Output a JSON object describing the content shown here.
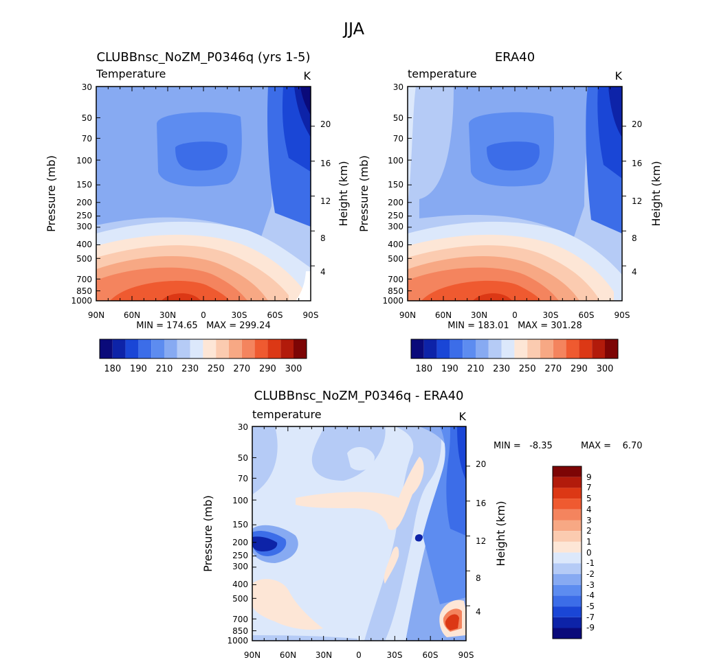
{
  "figure_title": "JJA",
  "chart_data": [
    {
      "type": "heatmap",
      "title": "CLUBBnsc_NoZM_P0346q (yrs 1-5)",
      "variable_label": "Temperature",
      "units": "K",
      "ylabel": "Pressure (mb)",
      "y2label": "Height (km)",
      "x_ticks": [
        "90N",
        "60N",
        "30N",
        "0",
        "30S",
        "60S",
        "90S"
      ],
      "y_ticks": [
        "30",
        "50",
        "70",
        "100",
        "150",
        "200",
        "250",
        "300",
        "400",
        "500",
        "700",
        "850",
        "1000"
      ],
      "y2_ticks": [
        "20",
        "16",
        "12",
        "8",
        "4"
      ],
      "stats": "MIN = 174.65   MAX = 299.24",
      "colorbar_labels": [
        "180",
        "190",
        "210",
        "230",
        "250",
        "270",
        "290",
        "300"
      ],
      "colorbar_colors": [
        "#0a0a7a",
        "#0d23a8",
        "#1a46d6",
        "#3c6de8",
        "#5d8cf0",
        "#87aaf2",
        "#b5cbf6",
        "#dce8fb",
        "#fde6d6",
        "#fbcbb0",
        "#f7a884",
        "#f4845e",
        "#ef5a30",
        "#dc3815",
        "#b21b0b",
        "#7d0505"
      ],
      "min": 174.65,
      "max": 299.24,
      "log_pressure_axis": true
    },
    {
      "type": "heatmap",
      "title": "ERA40",
      "variable_label": "temperature",
      "units": "K",
      "ylabel": "Pressure (mb)",
      "y2label": "Height (km)",
      "x_ticks": [
        "90N",
        "60N",
        "30N",
        "0",
        "30S",
        "60S",
        "90S"
      ],
      "y_ticks": [
        "30",
        "50",
        "70",
        "100",
        "150",
        "200",
        "250",
        "300",
        "400",
        "500",
        "700",
        "850",
        "1000"
      ],
      "y2_ticks": [
        "20",
        "16",
        "12",
        "8",
        "4"
      ],
      "stats": "MIN = 183.01   MAX = 301.28",
      "colorbar_labels": [
        "180",
        "190",
        "210",
        "230",
        "250",
        "270",
        "290",
        "300"
      ],
      "colorbar_colors": [
        "#0a0a7a",
        "#0d23a8",
        "#1a46d6",
        "#3c6de8",
        "#5d8cf0",
        "#87aaf2",
        "#b5cbf6",
        "#dce8fb",
        "#fde6d6",
        "#fbcbb0",
        "#f7a884",
        "#f4845e",
        "#ef5a30",
        "#dc3815",
        "#b21b0b",
        "#7d0505"
      ],
      "min": 183.01,
      "max": 301.28,
      "log_pressure_axis": true
    },
    {
      "type": "heatmap",
      "title": "CLUBBnsc_NoZM_P0346q - ERA40",
      "variable_label": "temperature",
      "units": "K",
      "ylabel": "Pressure (mb)",
      "y2label": "Height (km)",
      "x_ticks": [
        "90N",
        "60N",
        "30N",
        "0",
        "30S",
        "60S",
        "90S"
      ],
      "y_ticks": [
        "30",
        "50",
        "70",
        "100",
        "150",
        "200",
        "250",
        "300",
        "400",
        "500",
        "700",
        "850",
        "1000"
      ],
      "y2_ticks": [
        "20",
        "16",
        "12",
        "8",
        "4"
      ],
      "stats_min": "MIN =   -8.35",
      "stats_max": "MAX =    6.70",
      "min": -8.35,
      "max": 6.7,
      "colorbar_labels": [
        "9",
        "7",
        "5",
        "4",
        "3",
        "2",
        "1",
        "0",
        "-1",
        "-2",
        "-3",
        "-4",
        "-5",
        "-7",
        "-9"
      ],
      "colorbar_colors": [
        "#7d0505",
        "#b21b0b",
        "#dc3815",
        "#ef5a30",
        "#f4845e",
        "#f7a884",
        "#fbcbb0",
        "#fde6d6",
        "#dce8fb",
        "#b5cbf6",
        "#87aaf2",
        "#5d8cf0",
        "#3c6de8",
        "#1a46d6",
        "#0d23a8",
        "#0a0a7a"
      ],
      "log_pressure_axis": true
    }
  ]
}
